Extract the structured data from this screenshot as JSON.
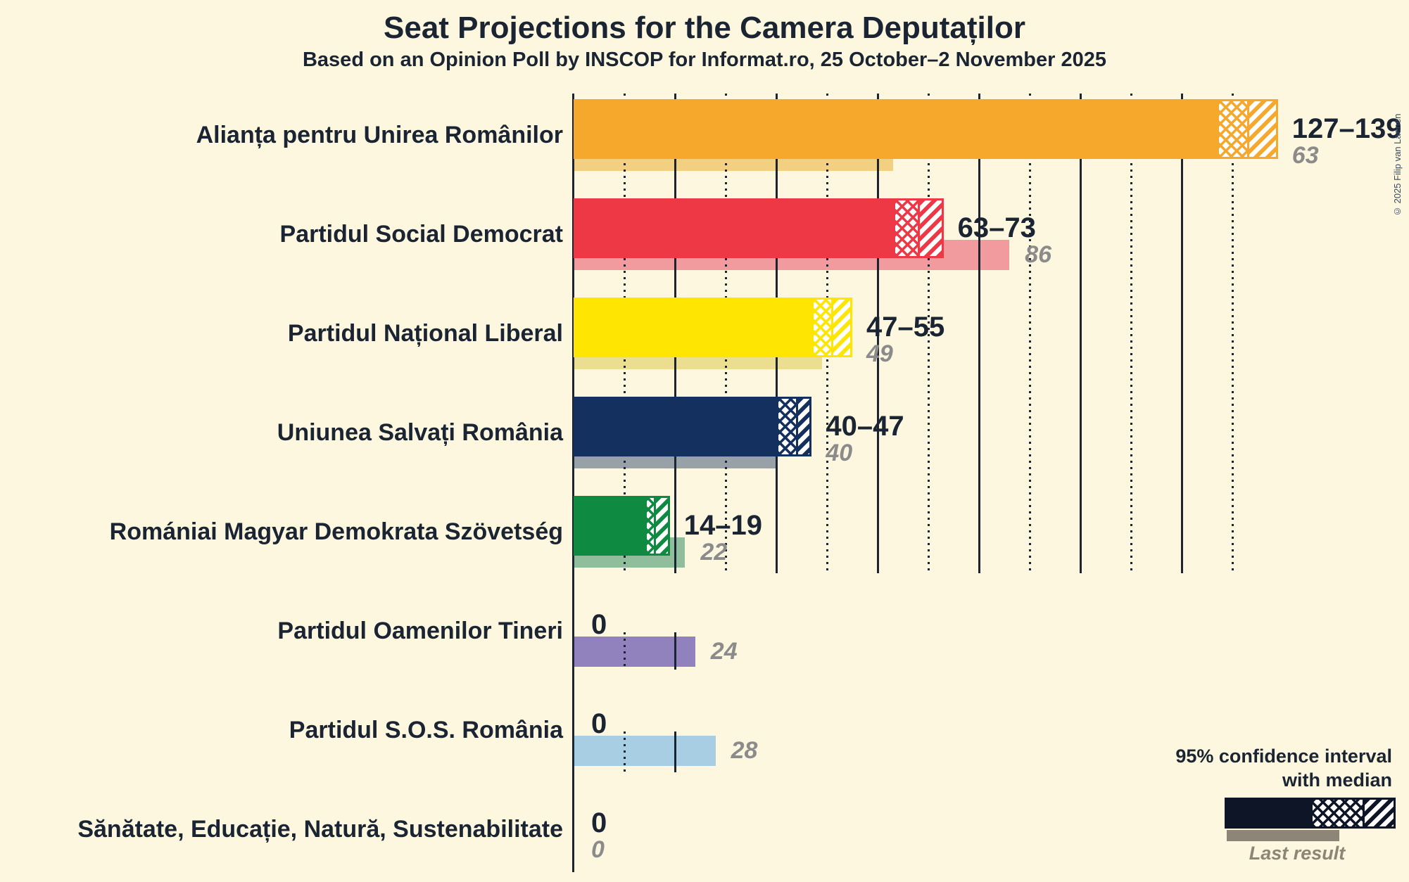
{
  "title": "Seat Projections for the Camera Deputaților",
  "subtitle": "Based on an Opinion Poll by INSCOP for Informat.ro, 25 October–2 November 2025",
  "copyright": "© 2025 Filip van Laenen",
  "legend": {
    "line1": "95% confidence interval",
    "line2": "with median",
    "last_result": "Last result",
    "bar_color": "#0D1526",
    "gray_color": "#8D8575"
  },
  "colors": {
    "background": "#FCF7DE",
    "text_dark": "#1B2433",
    "text_gray": "#8B8B8B",
    "hatch_background": "#FFFFFF"
  },
  "chart_data": {
    "type": "bar",
    "title": "Seat Projections for the Camera Deputaților",
    "subtitle": "Based on an Opinion Poll by INSCOP for Informat.ro, 25 October–2 November 2025",
    "x_axis": {
      "unit": "seats",
      "min": 0,
      "max_gridline": 130,
      "solid_gridline_every": 20,
      "dotted_gridline_every": 10
    },
    "legend_note": "95% confidence interval with median; lighter underbar = last result",
    "parties": [
      {
        "name": "Alianța pentru Unirea Românilor",
        "ci_label": "127–139",
        "ci_low": 127,
        "median": 133,
        "ci_high": 139,
        "last_result": 63,
        "last_result_label": "63",
        "color": "#F6A82C",
        "light_color": "#F3CF81"
      },
      {
        "name": "Partidul Social Democrat",
        "ci_label": "63–73",
        "ci_low": 63,
        "median": 68,
        "ci_high": 73,
        "last_result": 86,
        "last_result_label": "86",
        "color": "#EE3846",
        "light_color": "#F29B9E"
      },
      {
        "name": "Partidul Național Liberal",
        "ci_label": "47–55",
        "ci_low": 47,
        "median": 51,
        "ci_high": 55,
        "last_result": 49,
        "last_result_label": "49",
        "color": "#FFE602",
        "light_color": "#EBDE90"
      },
      {
        "name": "Uniunea Salvați România",
        "ci_label": "40–47",
        "ci_low": 40,
        "median": 44,
        "ci_high": 47,
        "last_result": 40,
        "last_result_label": "40",
        "color": "#13305F",
        "light_color": "#98A1A8"
      },
      {
        "name": "Romániai Magyar Demokrata Szövetség",
        "ci_label": "14–19",
        "ci_low": 14,
        "median": 16,
        "ci_high": 19,
        "last_result": 22,
        "last_result_label": "22",
        "color": "#0E8A41",
        "light_color": "#90BD9B"
      },
      {
        "name": "Partidul Oamenilor Tineri",
        "ci_label": "0",
        "ci_low": 0,
        "median": 0,
        "ci_high": 0,
        "last_result": 24,
        "last_result_label": "24",
        "color": "#9182BD",
        "light_color": "#9182BD"
      },
      {
        "name": "Partidul S.O.S. România",
        "ci_label": "0",
        "ci_low": 0,
        "median": 0,
        "ci_high": 0,
        "last_result": 28,
        "last_result_label": "28",
        "color": "#A7CEE3",
        "light_color": "#A7CEE3"
      },
      {
        "name": "Sănătate, Educație, Natură, Sustenabilitate",
        "ci_label": "0",
        "ci_low": 0,
        "median": 0,
        "ci_high": 0,
        "last_result": 0,
        "last_result_label": "0",
        "color": "#1B2433",
        "light_color": "#1B2433"
      }
    ]
  }
}
